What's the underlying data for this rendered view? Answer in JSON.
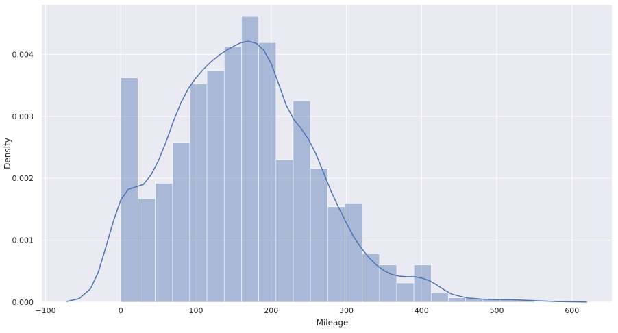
{
  "chart_data": {
    "type": "bar",
    "overlay": "kde-line",
    "xlabel": "Mileage",
    "ylabel": "Density",
    "xlim": [
      -105,
      653
    ],
    "ylim": [
      0,
      0.0048
    ],
    "grid": true,
    "colors": {
      "background": "#eaeaf2",
      "grid": "#ffffff",
      "bar": "#4c72b0",
      "bar_opacity": 0.42,
      "line": "#4c72b0"
    },
    "x_ticks": [
      {
        "value": -100,
        "label": "−100"
      },
      {
        "value": 0,
        "label": "0"
      },
      {
        "value": 100,
        "label": "100"
      },
      {
        "value": 200,
        "label": "200"
      },
      {
        "value": 300,
        "label": "300"
      },
      {
        "value": 400,
        "label": "400"
      },
      {
        "value": 500,
        "label": "500"
      },
      {
        "value": 600,
        "label": "600"
      }
    ],
    "y_ticks": [
      {
        "value": 0,
        "label": "0.000"
      },
      {
        "value": 0.001,
        "label": "0.001"
      },
      {
        "value": 0.002,
        "label": "0.002"
      },
      {
        "value": 0.003,
        "label": "0.003"
      },
      {
        "value": 0.004,
        "label": "0.004"
      }
    ],
    "bin_edges": [
      0,
      22.9,
      45.9,
      68.8,
      91.7,
      114.6,
      137.6,
      160.5,
      183.4,
      206.4,
      229.3,
      252.2,
      275.2,
      298.1,
      321,
      344,
      366.9,
      389.8,
      412.8,
      435.7,
      458.6,
      481.5,
      504.5,
      527.4,
      550.3
    ],
    "values": [
      0.00362,
      0.00167,
      0.00192,
      0.00258,
      0.00352,
      0.00374,
      0.00412,
      0.00461,
      0.00419,
      0.0023,
      0.00325,
      0.00216,
      0.00154,
      0.0016,
      0.00078,
      0.0006,
      0.00031,
      0.0006,
      0.00015,
      7e-05,
      6e-05,
      5e-05,
      4e-05,
      4e-05
    ],
    "kde": {
      "x": [
        -72,
        -55,
        -40,
        -30,
        -20,
        -10,
        0,
        10,
        20,
        30,
        40,
        50,
        60,
        70,
        80,
        90,
        100,
        110,
        120,
        130,
        140,
        150,
        160,
        170,
        180,
        190,
        200,
        210,
        220,
        230,
        240,
        250,
        260,
        270,
        280,
        290,
        300,
        310,
        320,
        330,
        340,
        350,
        360,
        370,
        380,
        390,
        400,
        410,
        420,
        430,
        440,
        460,
        480,
        500,
        520,
        540,
        560,
        580,
        600,
        620
      ],
      "y": [
        1e-05,
        6e-05,
        0.00022,
        0.00048,
        0.00088,
        0.0013,
        0.00165,
        0.00182,
        0.00186,
        0.0019,
        0.00205,
        0.00228,
        0.00258,
        0.00292,
        0.00322,
        0.00345,
        0.00362,
        0.00376,
        0.00388,
        0.00398,
        0.00406,
        0.00413,
        0.00419,
        0.00421,
        0.00418,
        0.00407,
        0.00385,
        0.00352,
        0.00318,
        0.00295,
        0.0028,
        0.00262,
        0.00238,
        0.00208,
        0.00178,
        0.00152,
        0.00128,
        0.00105,
        0.00087,
        0.00072,
        0.0006,
        0.00051,
        0.00045,
        0.00042,
        0.00041,
        0.00041,
        0.00039,
        0.00035,
        0.00028,
        0.0002,
        0.00013,
        7e-05,
        5e-05,
        4e-05,
        4e-05,
        3e-05,
        2e-05,
        1e-05,
        5e-06,
        1e-06
      ]
    }
  }
}
